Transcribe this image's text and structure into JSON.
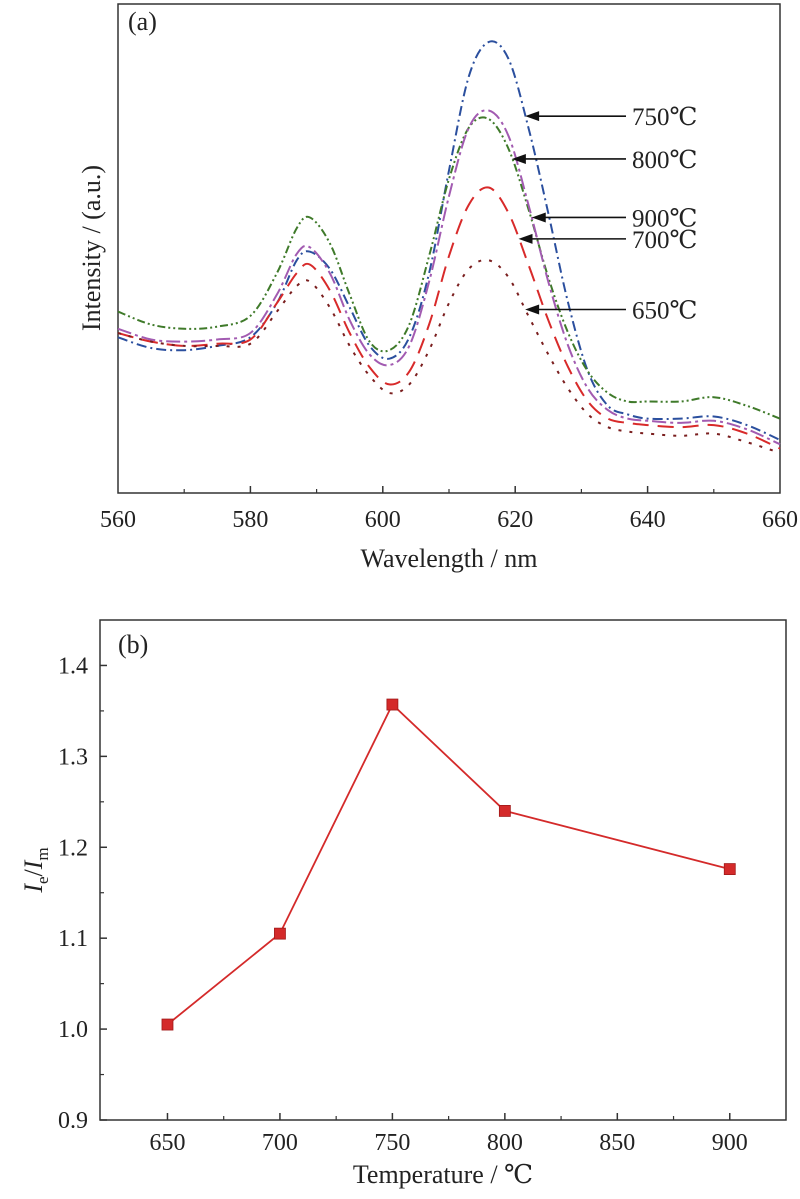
{
  "chart_data": [
    {
      "panel_label": "(a)",
      "type": "line",
      "xlabel": "Wavelength / nm",
      "ylabel": "Intensity / (a.u.)",
      "xlim": [
        560,
        660
      ],
      "x_ticks": [
        560,
        580,
        600,
        620,
        640,
        660
      ],
      "y_ticks_shown": false,
      "ylim": [
        0,
        1
      ],
      "grid": false,
      "series": [
        {
          "name": "750℃",
          "color": "#2b4f9e",
          "dash": "dash-dot",
          "x": [
            560,
            565,
            570,
            575,
            580,
            584,
            587,
            589,
            592,
            595,
            598,
            601,
            604,
            607,
            610,
            613,
            616,
            619,
            622,
            625,
            628,
            631,
            634,
            637,
            640,
            645,
            650,
            655,
            660
          ],
          "y": [
            0.31,
            0.285,
            0.28,
            0.29,
            0.31,
            0.39,
            0.49,
            0.51,
            0.47,
            0.38,
            0.29,
            0.26,
            0.31,
            0.46,
            0.7,
            0.92,
            1.0,
            0.96,
            0.8,
            0.6,
            0.39,
            0.23,
            0.15,
            0.13,
            0.12,
            0.12,
            0.125,
            0.105,
            0.07
          ]
        },
        {
          "name": "800℃",
          "color": "#3f7a2a",
          "dash": "dash-dot-dot",
          "x": [
            560,
            565,
            570,
            575,
            580,
            584,
            587,
            589,
            592,
            595,
            598,
            601,
            604,
            607,
            610,
            613,
            616,
            619,
            622,
            625,
            628,
            631,
            634,
            637,
            640,
            645,
            650,
            655,
            660
          ],
          "y": [
            0.37,
            0.34,
            0.33,
            0.335,
            0.36,
            0.46,
            0.565,
            0.59,
            0.53,
            0.41,
            0.3,
            0.28,
            0.34,
            0.5,
            0.68,
            0.8,
            0.82,
            0.75,
            0.61,
            0.45,
            0.32,
            0.23,
            0.18,
            0.16,
            0.16,
            0.16,
            0.17,
            0.15,
            0.12
          ]
        },
        {
          "name": "900℃",
          "color": "#a25bb1",
          "dash": "long-dash-dot",
          "x": [
            560,
            565,
            570,
            575,
            580,
            584,
            587,
            589,
            592,
            595,
            598,
            601,
            604,
            607,
            610,
            613,
            616,
            619,
            622,
            625,
            628,
            631,
            634,
            637,
            640,
            645,
            650,
            655,
            660
          ],
          "y": [
            0.33,
            0.305,
            0.3,
            0.305,
            0.32,
            0.41,
            0.505,
            0.52,
            0.46,
            0.35,
            0.27,
            0.245,
            0.29,
            0.44,
            0.64,
            0.8,
            0.84,
            0.78,
            0.62,
            0.44,
            0.29,
            0.19,
            0.14,
            0.12,
            0.115,
            0.11,
            0.115,
            0.095,
            0.06
          ]
        },
        {
          "name": "700℃",
          "color": "#d82a2a",
          "dash": "long-dash",
          "x": [
            560,
            565,
            570,
            575,
            580,
            584,
            587,
            589,
            592,
            595,
            598,
            601,
            604,
            607,
            610,
            613,
            616,
            619,
            622,
            625,
            628,
            631,
            634,
            637,
            640,
            645,
            650,
            655,
            660
          ],
          "y": [
            0.32,
            0.3,
            0.29,
            0.295,
            0.305,
            0.39,
            0.46,
            0.48,
            0.42,
            0.32,
            0.24,
            0.2,
            0.23,
            0.34,
            0.5,
            0.62,
            0.66,
            0.6,
            0.48,
            0.35,
            0.24,
            0.16,
            0.12,
            0.11,
            0.105,
            0.1,
            0.105,
            0.085,
            0.05
          ]
        },
        {
          "name": "650℃",
          "color": "#7a1e1e",
          "dash": "dot",
          "x": [
            560,
            565,
            570,
            575,
            580,
            584,
            587,
            589,
            592,
            595,
            598,
            601,
            604,
            607,
            610,
            613,
            616,
            619,
            622,
            625,
            628,
            631,
            634,
            637,
            640,
            645,
            650,
            655,
            660
          ],
          "y": [
            0.32,
            0.3,
            0.29,
            0.29,
            0.295,
            0.37,
            0.43,
            0.44,
            0.38,
            0.29,
            0.22,
            0.18,
            0.2,
            0.28,
            0.39,
            0.47,
            0.49,
            0.45,
            0.36,
            0.27,
            0.19,
            0.13,
            0.1,
            0.09,
            0.085,
            0.08,
            0.085,
            0.065,
            0.04
          ]
        }
      ],
      "annotations": [
        {
          "text": "750℃",
          "series_index": 0,
          "point_x": 621.5
        },
        {
          "text": "800℃",
          "series_index": 1,
          "point_x": 619.5
        },
        {
          "text": "900℃",
          "series_index": 2,
          "point_x": 622.5
        },
        {
          "text": "700℃",
          "series_index": 3,
          "point_x": 620.5
        },
        {
          "text": "650℃",
          "series_index": 4,
          "point_x": 621.5
        }
      ]
    },
    {
      "panel_label": "(b)",
      "type": "line",
      "xlabel": "Temperature / ℃",
      "ylabel_main": "I",
      "ylabel_sub1": "e",
      "ylabel_mid": "/",
      "ylabel_sub2": "m",
      "xlim": [
        620,
        925
      ],
      "ylim": [
        0.9,
        1.45
      ],
      "x_ticks": [
        650,
        700,
        750,
        800,
        850,
        900
      ],
      "y_ticks": [
        "0.9",
        "1.0",
        "1.1",
        "1.2",
        "1.3",
        "1.4"
      ],
      "grid": false,
      "series": [
        {
          "color": "#d42a2a",
          "marker": "square",
          "x": [
            650,
            700,
            750,
            800,
            900
          ],
          "y": [
            1.005,
            1.105,
            1.357,
            1.24,
            1.176
          ]
        }
      ]
    }
  ]
}
